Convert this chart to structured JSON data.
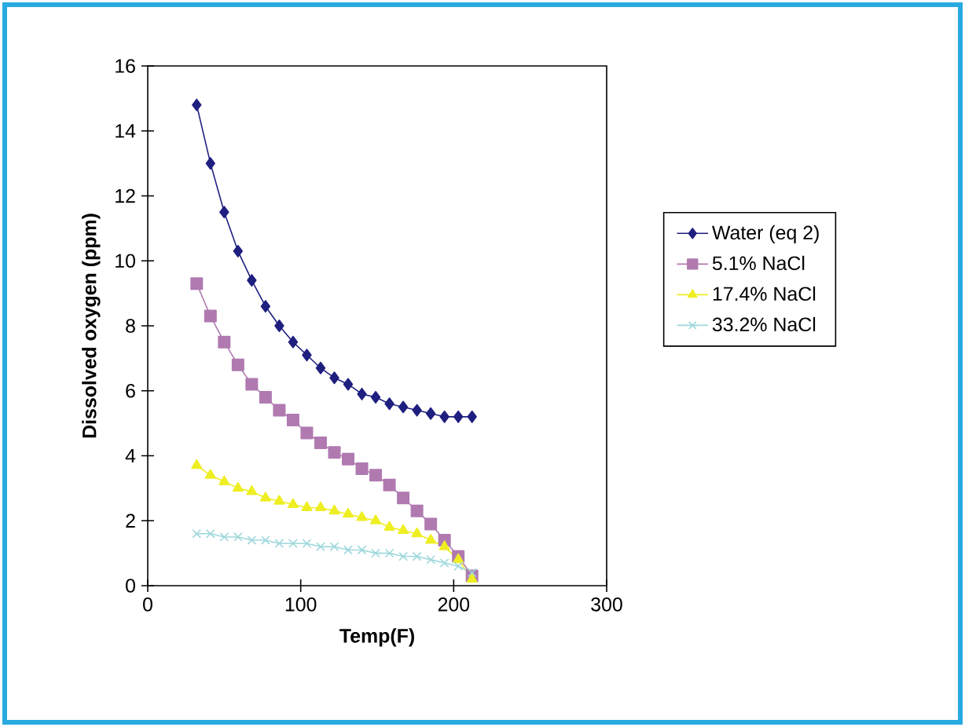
{
  "chart_data": {
    "type": "line",
    "xlabel": "Temp(F)",
    "ylabel": "Dissolved oxygen (ppm)",
    "x": [
      32,
      41,
      50,
      59,
      68,
      77,
      86,
      95,
      104,
      113,
      122,
      131,
      140,
      149,
      158,
      167,
      176,
      185,
      194,
      203,
      212
    ],
    "series": [
      {
        "name": "Water (eq 2)",
        "color": "#1f1f80",
        "marker": "diamond",
        "values": [
          14.8,
          13.0,
          11.5,
          10.3,
          9.4,
          8.6,
          8.0,
          7.5,
          7.1,
          6.7,
          6.4,
          6.2,
          5.9,
          5.8,
          5.6,
          5.5,
          5.4,
          5.3,
          5.2,
          5.2,
          5.2
        ]
      },
      {
        "name": "5.1% NaCl",
        "color": "#b07ab0",
        "marker": "square",
        "values": [
          9.3,
          8.3,
          7.5,
          6.8,
          6.2,
          5.8,
          5.4,
          5.1,
          4.7,
          4.4,
          4.1,
          3.9,
          3.6,
          3.4,
          3.1,
          2.7,
          2.3,
          1.9,
          1.4,
          0.9,
          0.3
        ]
      },
      {
        "name": "17.4% NaCl",
        "color": "#eeee22",
        "marker": "triangle",
        "values": [
          3.7,
          3.4,
          3.2,
          3.0,
          2.9,
          2.7,
          2.6,
          2.5,
          2.4,
          2.4,
          2.3,
          2.2,
          2.1,
          2.0,
          1.8,
          1.7,
          1.6,
          1.4,
          1.2,
          0.8,
          0.2
        ]
      },
      {
        "name": "33.2% NaCl",
        "color": "#9fd8dc",
        "marker": "cross",
        "values": [
          1.6,
          1.6,
          1.5,
          1.5,
          1.4,
          1.4,
          1.3,
          1.3,
          1.3,
          1.2,
          1.2,
          1.1,
          1.1,
          1.0,
          1.0,
          0.9,
          0.9,
          0.8,
          0.7,
          0.6,
          0.4
        ]
      }
    ],
    "xlim": [
      0,
      300
    ],
    "xticks": [
      0,
      100,
      200,
      300
    ],
    "ylim": [
      0,
      16
    ],
    "yticks": [
      0,
      2,
      4,
      6,
      8,
      10,
      12,
      14,
      16
    ],
    "grid": false,
    "legend": "right",
    "line_style": "solid"
  }
}
